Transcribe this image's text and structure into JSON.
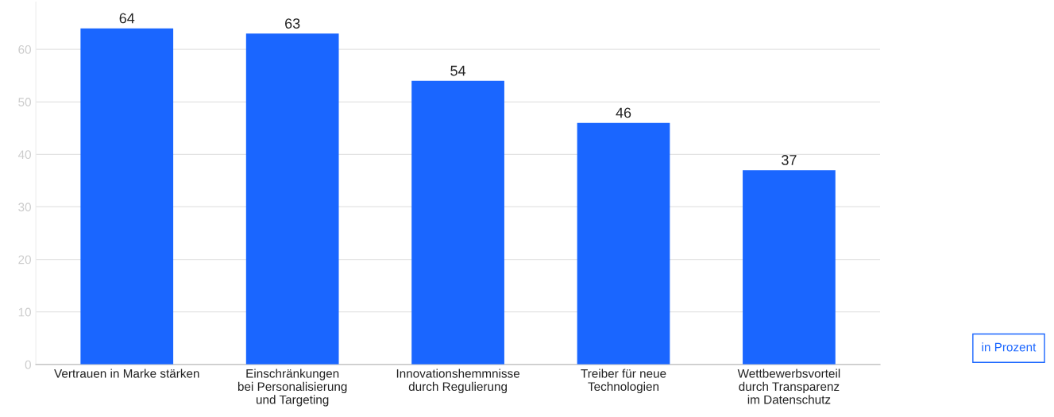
{
  "chart_data": {
    "type": "bar",
    "categories": [
      "Vertrauen in Marke stärken",
      "Einschränkungen\nbei Personalisierung\nund Targeting",
      "Innovationshemmnisse\ndurch Regulierung",
      "Treiber für neue\nTechnologien",
      "Wettbewerbsvorteil\ndurch Transparenz\nim Datenschutz"
    ],
    "values": [
      64,
      63,
      54,
      46,
      37
    ],
    "color": "#1a66ff",
    "ylim": [
      0,
      69
    ],
    "yticks": [
      0,
      10,
      20,
      30,
      40,
      50,
      60
    ],
    "grid": "y",
    "data_labels": true,
    "annotations": [
      "in Prozent"
    ]
  }
}
